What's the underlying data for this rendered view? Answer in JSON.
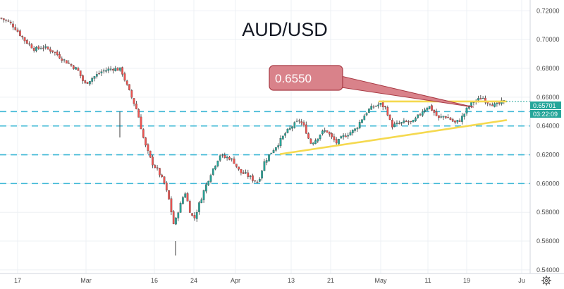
{
  "chart_data": {
    "type": "candlestick",
    "title": "AUD/USD",
    "ylim": [
      0.5375,
      0.7275
    ],
    "y_ticks": [
      "0.72000",
      "0.70000",
      "0.68000",
      "0.66000",
      "0.64000",
      "0.62000",
      "0.60000",
      "0.58000",
      "0.56000",
      "0.54000"
    ],
    "x_ticks": [
      "17",
      "Mar",
      "16",
      "24",
      "Apr",
      "13",
      "21",
      "May",
      "11",
      "19",
      "Ju"
    ],
    "price_tag": "0.65701",
    "countdown_tag": "03:22:09",
    "callout_label": "0.6550",
    "horizontal_levels": [
      0.65,
      0.64,
      0.62,
      0.6
    ],
    "trendlines": [
      {
        "name": "resistance",
        "from": [
          0.657
        ],
        "to": [
          0.657
        ]
      },
      {
        "name": "support",
        "from": [
          0.6205
        ],
        "to": [
          0.644
        ]
      }
    ],
    "anchors": [
      [
        0,
        0.715
      ],
      [
        10,
        0.713
      ],
      [
        20,
        0.709
      ],
      [
        35,
        0.6995
      ],
      [
        50,
        0.693
      ],
      [
        60,
        0.695
      ],
      [
        75,
        0.692
      ],
      [
        90,
        0.686
      ],
      [
        110,
        0.679
      ],
      [
        120,
        0.669
      ],
      [
        130,
        0.673
      ],
      [
        145,
        0.678
      ],
      [
        160,
        0.68
      ],
      [
        172,
        0.679
      ],
      [
        180,
        0.668
      ],
      [
        195,
        0.65
      ],
      [
        205,
        0.628
      ],
      [
        215,
        0.615
      ],
      [
        225,
        0.608
      ],
      [
        233,
        0.6
      ],
      [
        240,
        0.588
      ],
      [
        247,
        0.57
      ],
      [
        252,
        0.58
      ],
      [
        258,
        0.588
      ],
      [
        262,
        0.595
      ],
      [
        270,
        0.58
      ],
      [
        275,
        0.575
      ],
      [
        282,
        0.585
      ],
      [
        290,
        0.596
      ],
      [
        298,
        0.606
      ],
      [
        305,
        0.613
      ],
      [
        312,
        0.62
      ],
      [
        318,
        0.618
      ],
      [
        325,
        0.618
      ],
      [
        332,
        0.615
      ],
      [
        340,
        0.608
      ],
      [
        350,
        0.606
      ],
      [
        358,
        0.603
      ],
      [
        366,
        0.601
      ],
      [
        375,
        0.615
      ],
      [
        385,
        0.622
      ],
      [
        395,
        0.628
      ],
      [
        405,
        0.635
      ],
      [
        415,
        0.64
      ],
      [
        425,
        0.644
      ],
      [
        433,
        0.638
      ],
      [
        440,
        0.628
      ],
      [
        447,
        0.63
      ],
      [
        455,
        0.635
      ],
      [
        463,
        0.637
      ],
      [
        470,
        0.632
      ],
      [
        478,
        0.628
      ],
      [
        485,
        0.632
      ],
      [
        495,
        0.635
      ],
      [
        505,
        0.638
      ],
      [
        512,
        0.644
      ],
      [
        522,
        0.651
      ],
      [
        532,
        0.654
      ],
      [
        540,
        0.655
      ],
      [
        548,
        0.652
      ],
      [
        555,
        0.64
      ],
      [
        562,
        0.641
      ],
      [
        570,
        0.642
      ],
      [
        578,
        0.643
      ],
      [
        585,
        0.642
      ],
      [
        592,
        0.646
      ],
      [
        600,
        0.651
      ],
      [
        608,
        0.654
      ],
      [
        615,
        0.65
      ],
      [
        622,
        0.645
      ],
      [
        630,
        0.647
      ],
      [
        638,
        0.645
      ],
      [
        645,
        0.642
      ],
      [
        652,
        0.644
      ],
      [
        658,
        0.648
      ],
      [
        665,
        0.654
      ],
      [
        672,
        0.657
      ],
      [
        678,
        0.658
      ],
      [
        684,
        0.66
      ],
      [
        690,
        0.657
      ],
      [
        696,
        0.656
      ],
      [
        703,
        0.654
      ],
      [
        710,
        0.656
      ],
      [
        716,
        0.657
      ]
    ],
    "colors": {
      "up": "#26a69a",
      "down": "#ef5350",
      "wick": "#3a3a3a",
      "level_line": "#3fb8d6",
      "trendline": "#f5d94f",
      "callout_fill": "#d9828a",
      "callout_stroke": "#a83a44",
      "price_tag": "#26a69a",
      "grid": "#edf0f4"
    }
  }
}
